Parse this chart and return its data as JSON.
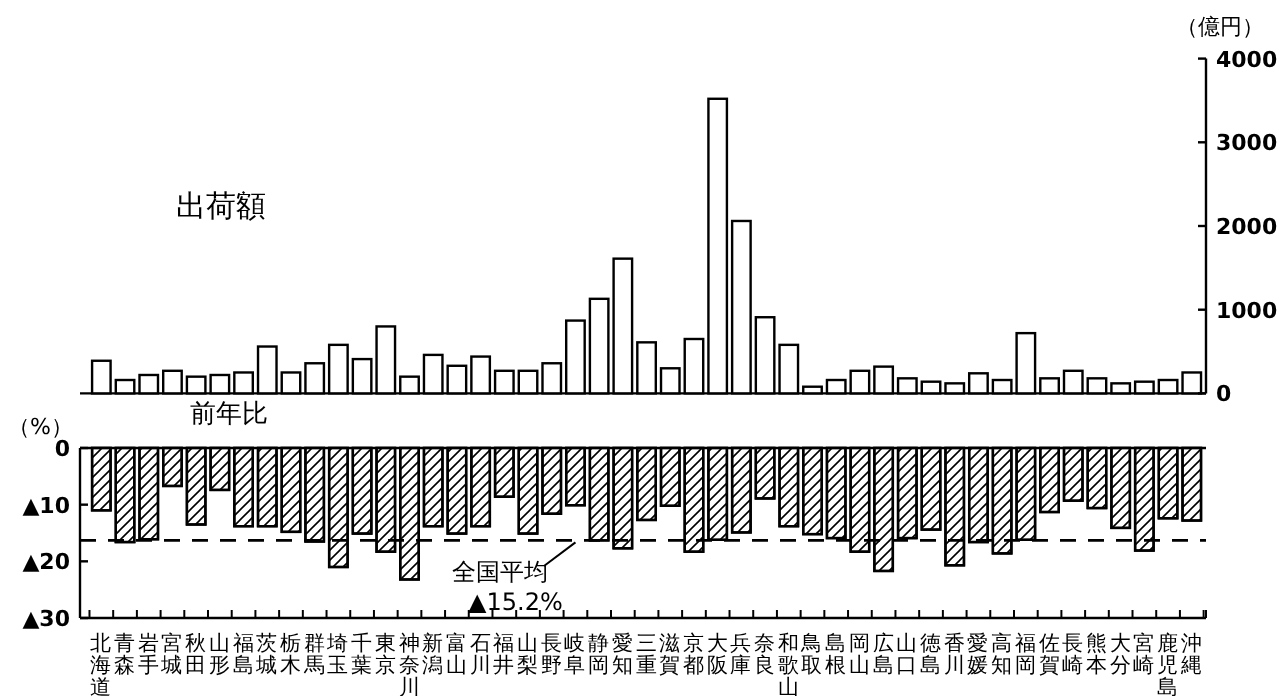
{
  "chart_data": [
    {
      "type": "bar",
      "title": "出荷額",
      "ylabel": "（億円）",
      "tick_labels": "y",
      "categories": [
        null,
        null,
        null,
        null,
        null,
        null,
        null,
        null,
        null,
        null,
        null,
        null,
        null,
        null,
        null,
        null,
        null,
        null,
        null,
        null,
        null,
        null,
        null,
        null,
        null,
        null,
        null,
        null,
        null,
        null,
        null,
        null,
        null,
        null,
        null,
        null,
        null,
        null,
        null,
        null,
        null,
        null,
        null,
        null,
        null,
        null,
        null
      ],
      "series": [
        {
          "color": "#ffffff",
          "values": [
            390,
            160,
            220,
            270,
            200,
            220,
            250,
            560,
            250,
            360,
            580,
            410,
            800,
            200,
            460,
            330,
            440,
            270,
            270,
            360,
            870,
            1130,
            1610,
            610,
            300,
            650,
            3520,
            2060,
            910,
            580,
            80,
            160,
            270,
            320,
            180,
            140,
            120,
            240,
            160,
            720,
            180,
            270,
            180,
            120,
            140,
            160,
            250
          ]
        }
      ],
      "ylim": [
        0,
        4000
      ],
      "yticks": [
        0,
        1000,
        2000,
        3000,
        4000
      ]
    },
    {
      "type": "bar",
      "title": "前年比",
      "ylabel": "（%）",
      "categories": [
        "北海道",
        "青森",
        "岩手",
        "宮城",
        "秋田",
        "山形",
        "福島",
        "茨城",
        "栃木",
        "群馬",
        "埼玉",
        "千葉",
        "東京",
        "神奈川",
        "新潟",
        "富山",
        "石川",
        "福井",
        "山梨",
        "長野",
        "岐阜",
        "静岡",
        "愛知",
        "三重",
        "滋賀",
        "京都",
        "大阪",
        "兵庫",
        "奈良",
        "和歌山",
        "鳥取",
        "島根",
        "岡山",
        "広島",
        "山口",
        "徳島",
        "香川",
        "愛媛",
        "高知",
        "福岡",
        "佐賀",
        "長崎",
        "熊本",
        "大分",
        "宮崎",
        "鹿児島",
        "沖縄"
      ],
      "series": [
        {
          "color": "#ffffff",
          "values": [
            -11.0,
            -16.6,
            -16.1,
            -6.7,
            -13.5,
            -7.4,
            -13.8,
            -13.8,
            -14.8,
            -16.5,
            -21.0,
            -15.1,
            -18.3,
            -23.2,
            -13.8,
            -15.1,
            -13.8,
            -8.6,
            -15.1,
            -11.6,
            -10.1,
            -16.3,
            -17.7,
            -12.7,
            -10.2,
            -18.3,
            -16.2,
            -14.9,
            -8.9,
            -13.8,
            -15.2,
            -15.9,
            -18.3,
            -21.7,
            -15.9,
            -14.4,
            -20.7,
            -16.6,
            -18.6,
            -16.2,
            -11.3,
            -9.3,
            -10.6,
            -14.1,
            -18.1,
            -12.4,
            -12.8
          ]
        }
      ],
      "ylim": [
        -30,
        0
      ],
      "yticks": [
        0,
        {
          "value": -10,
          "label": "▲10"
        },
        {
          "value": -20,
          "label": "▲20"
        },
        {
          "value": -30,
          "label": "▲30"
        }
      ],
      "ref_lines": [
        {
          "axis": "y",
          "value": -16.3,
          "color": "#000000",
          "line_style": "dashed"
        }
      ],
      "annotations": [
        {
          "text": "全国平均",
          "x": "岐阜",
          "y": -16.3
        },
        "▲15.2%"
      ]
    }
  ]
}
